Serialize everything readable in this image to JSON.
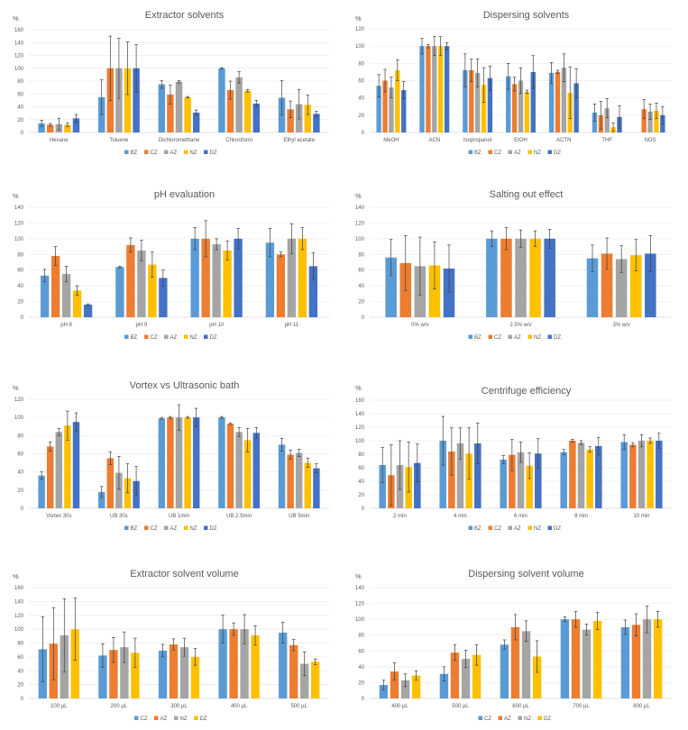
{
  "colors": {
    "BZ": "#5B9BD5",
    "CZ": "#ED7D31",
    "AZ": "#A5A5A5",
    "NZ": "#FFC000",
    "DZ": "#4472C4"
  },
  "chart_data": [
    {
      "type": "bar",
      "title": "Extractor solvents",
      "ylabel": "%",
      "ylim": [
        0,
        160
      ],
      "yticks": [
        0,
        20,
        40,
        60,
        80,
        100,
        120,
        140,
        160
      ],
      "categories": [
        "Hexane",
        "Toluene",
        "Dichloromethane",
        "Chloroform",
        "Ethyl acetate"
      ],
      "series": [
        {
          "name": "BZ",
          "values": [
            14,
            55,
            75,
            100,
            54
          ],
          "errors": [
            5,
            27,
            6,
            1,
            27
          ]
        },
        {
          "name": "CZ",
          "values": [
            12,
            100,
            59,
            66,
            36
          ],
          "errors": [
            2,
            50,
            15,
            14,
            13
          ]
        },
        {
          "name": "AZ",
          "values": [
            13,
            100,
            79,
            86,
            44
          ],
          "errors": [
            9,
            47,
            2,
            9,
            23
          ]
        },
        {
          "name": "NZ",
          "values": [
            12,
            100,
            55,
            65,
            43
          ],
          "errors": [
            3,
            41,
            1,
            2,
            15
          ]
        },
        {
          "name": "DZ",
          "values": [
            22,
            100,
            31,
            45,
            29
          ],
          "errors": [
            6,
            37,
            4,
            5,
            4
          ]
        }
      ],
      "legend": "bottom",
      "grid": true
    },
    {
      "type": "bar",
      "title": "Dispersing solvents",
      "ylabel": "%",
      "ylim": [
        0,
        120
      ],
      "yticks": [
        0,
        20,
        40,
        60,
        80,
        100,
        120
      ],
      "categories": [
        "MeOH",
        "ACN",
        "Isopropanol",
        "EtOH",
        "ACTN",
        "THF",
        "NOS"
      ],
      "series": [
        {
          "name": "BZ",
          "values": [
            54,
            100,
            72,
            65,
            69,
            23,
            null
          ],
          "errors": [
            13,
            9,
            19,
            15,
            12,
            10,
            null
          ]
        },
        {
          "name": "CZ",
          "values": [
            60,
            100,
            72,
            56,
            70,
            20,
            27
          ],
          "errors": [
            13,
            2,
            13,
            8,
            2,
            16,
            11
          ]
        },
        {
          "name": "AZ",
          "values": [
            52,
            100,
            69,
            60,
            75,
            28,
            24
          ],
          "errors": [
            12,
            11,
            16,
            15,
            16,
            11,
            9
          ]
        },
        {
          "name": "NZ",
          "values": [
            72,
            100,
            55,
            47,
            46,
            6,
            25
          ],
          "errors": [
            12,
            11,
            20,
            2,
            30,
            5,
            9
          ]
        },
        {
          "name": "DZ",
          "values": [
            49,
            100,
            63,
            70,
            57,
            18,
            20
          ],
          "errors": [
            10,
            4,
            14,
            19,
            17,
            13,
            10
          ]
        }
      ],
      "legend": "bottom",
      "grid": true
    },
    {
      "type": "bar",
      "title": "pH evaluation",
      "ylabel": "%",
      "ylim": [
        0,
        140
      ],
      "yticks": [
        0,
        20,
        40,
        60,
        80,
        100,
        120,
        140
      ],
      "categories": [
        "pH 8",
        "pH 9",
        "pH 10",
        "pH 11"
      ],
      "series": [
        {
          "name": "BZ",
          "values": [
            53,
            64,
            100,
            95
          ],
          "errors": [
            8,
            1,
            14,
            18
          ]
        },
        {
          "name": "CZ",
          "values": [
            78,
            92,
            100,
            80
          ],
          "errors": [
            12,
            9,
            23,
            3
          ]
        },
        {
          "name": "AZ",
          "values": [
            55,
            85,
            93,
            100
          ],
          "errors": [
            10,
            13,
            7,
            19
          ]
        },
        {
          "name": "NZ",
          "values": [
            34,
            67,
            85,
            100
          ],
          "errors": [
            6,
            16,
            12,
            14
          ]
        },
        {
          "name": "DZ",
          "values": [
            16,
            50,
            100,
            65
          ],
          "errors": [
            1,
            10,
            13,
            17
          ]
        }
      ],
      "legend": "bottom",
      "grid": true
    },
    {
      "type": "bar",
      "title": "Salting out effect",
      "ylabel": "%",
      "ylim": [
        0,
        140
      ],
      "yticks": [
        0,
        20,
        40,
        60,
        80,
        100,
        120,
        140
      ],
      "categories": [
        "0% w/v",
        "2.5% w/v",
        "3% w/v"
      ],
      "series": [
        {
          "name": "BZ",
          "values": [
            76,
            100,
            75
          ],
          "errors": [
            23,
            10,
            17
          ]
        },
        {
          "name": "CZ",
          "values": [
            69,
            100,
            81
          ],
          "errors": [
            35,
            14,
            20
          ]
        },
        {
          "name": "AZ",
          "values": [
            65,
            100,
            74
          ],
          "errors": [
            37,
            11,
            17
          ]
        },
        {
          "name": "NZ",
          "values": [
            66,
            100,
            79
          ],
          "errors": [
            30,
            10,
            20
          ]
        },
        {
          "name": "DZ",
          "values": [
            62,
            100,
            81
          ],
          "errors": [
            30,
            12,
            23
          ]
        }
      ],
      "legend": "bottom",
      "grid": true
    },
    {
      "type": "bar",
      "title": "Vortex vs Ultrasonic bath",
      "ylabel": "%",
      "ylim": [
        0,
        120
      ],
      "yticks": [
        0,
        20,
        40,
        60,
        80,
        100,
        120
      ],
      "categories": [
        "Vortex 30s",
        "UB 30s",
        "UB 1min",
        "UB 2.5min",
        "UB 5min"
      ],
      "series": [
        {
          "name": "BZ",
          "values": [
            36,
            18,
            99,
            100,
            70
          ],
          "errors": [
            4,
            6,
            1,
            1,
            7
          ]
        },
        {
          "name": "CZ",
          "values": [
            68,
            55,
            100,
            93,
            59
          ],
          "errors": [
            5,
            7,
            1,
            1,
            5
          ]
        },
        {
          "name": "AZ",
          "values": [
            84,
            39,
            100,
            84,
            61
          ],
          "errors": [
            4,
            18,
            14,
            5,
            4
          ]
        },
        {
          "name": "NZ",
          "values": [
            91,
            33,
            100,
            75,
            50
          ],
          "errors": [
            16,
            16,
            1,
            13,
            5
          ]
        },
        {
          "name": "DZ",
          "values": [
            95,
            30,
            100,
            83,
            44
          ],
          "errors": [
            10,
            16,
            10,
            6,
            5
          ]
        }
      ],
      "legend": "bottom",
      "grid": true
    },
    {
      "type": "bar",
      "title": "Centrifuge efficiency",
      "ylabel": "%",
      "ylim": [
        0,
        160
      ],
      "yticks": [
        0,
        20,
        40,
        60,
        80,
        100,
        120,
        140,
        160
      ],
      "categories": [
        "2 min",
        "4 min",
        "6 min",
        "8 min",
        "10 min"
      ],
      "series": [
        {
          "name": "BZ",
          "values": [
            64,
            100,
            72,
            83,
            98
          ],
          "errors": [
            26,
            36,
            6,
            4,
            11
          ]
        },
        {
          "name": "CZ",
          "values": [
            49,
            84,
            79,
            100,
            94
          ],
          "errors": [
            45,
            35,
            23,
            2,
            3
          ]
        },
        {
          "name": "AZ",
          "values": [
            64,
            96,
            83,
            97,
            100
          ],
          "errors": [
            36,
            23,
            15,
            3,
            9
          ]
        },
        {
          "name": "NZ",
          "values": [
            61,
            81,
            63,
            87,
            100
          ],
          "errors": [
            37,
            38,
            19,
            4,
            4
          ]
        },
        {
          "name": "DZ",
          "values": [
            67,
            96,
            81,
            92,
            100
          ],
          "errors": [
            28,
            30,
            22,
            13,
            11
          ]
        }
      ],
      "legend": "bottom",
      "grid": true
    },
    {
      "type": "bar",
      "title": "Extractor solvent volume",
      "ylabel": "%",
      "ylim": [
        0,
        160
      ],
      "yticks": [
        0,
        20,
        40,
        60,
        80,
        100,
        120,
        140,
        160
      ],
      "categories": [
        "100 µL",
        "200 µL",
        "300 µL",
        "400 µL",
        "500 µL"
      ],
      "series": [
        {
          "name": "CZ",
          "color_key": "BZ",
          "values": [
            71,
            62,
            69,
            100,
            95
          ],
          "errors": [
            47,
            17,
            9,
            20,
            15
          ]
        },
        {
          "name": "AZ",
          "color_key": "CZ",
          "values": [
            79,
            70,
            78,
            100,
            77
          ],
          "errors": [
            52,
            18,
            8,
            9,
            8
          ]
        },
        {
          "name": "NZ",
          "color_key": "AZ",
          "values": [
            91,
            74,
            74,
            100,
            50
          ],
          "errors": [
            53,
            22,
            13,
            21,
            17
          ]
        },
        {
          "name": "DZ",
          "color_key": "NZ",
          "values": [
            100,
            66,
            60,
            91,
            53
          ],
          "errors": [
            45,
            21,
            12,
            14,
            4
          ]
        }
      ],
      "legend": "bottom",
      "grid": true
    },
    {
      "type": "bar",
      "title": "Dispersing solvent volume",
      "ylabel": "%",
      "ylim": [
        0,
        140
      ],
      "yticks": [
        0,
        20,
        40,
        60,
        80,
        100,
        120,
        140
      ],
      "categories": [
        "400 µL",
        "500 µL",
        "600 µL",
        "700 µL",
        "800 µL"
      ],
      "series": [
        {
          "name": "CZ",
          "color_key": "BZ",
          "values": [
            17,
            31,
            68,
            100,
            90
          ],
          "errors": [
            6,
            9,
            6,
            3,
            9
          ]
        },
        {
          "name": "AZ",
          "color_key": "CZ",
          "values": [
            34,
            58,
            90,
            100,
            93
          ],
          "errors": [
            11,
            10,
            16,
            10,
            14
          ]
        },
        {
          "name": "NZ",
          "color_key": "AZ",
          "values": [
            23,
            50,
            85,
            87,
            100
          ],
          "errors": [
            8,
            11,
            13,
            7,
            17
          ]
        },
        {
          "name": "DZ",
          "color_key": "NZ",
          "values": [
            29,
            55,
            53,
            98,
            100
          ],
          "errors": [
            6,
            13,
            20,
            11,
            10
          ]
        }
      ],
      "legend": "bottom",
      "grid": true
    }
  ]
}
